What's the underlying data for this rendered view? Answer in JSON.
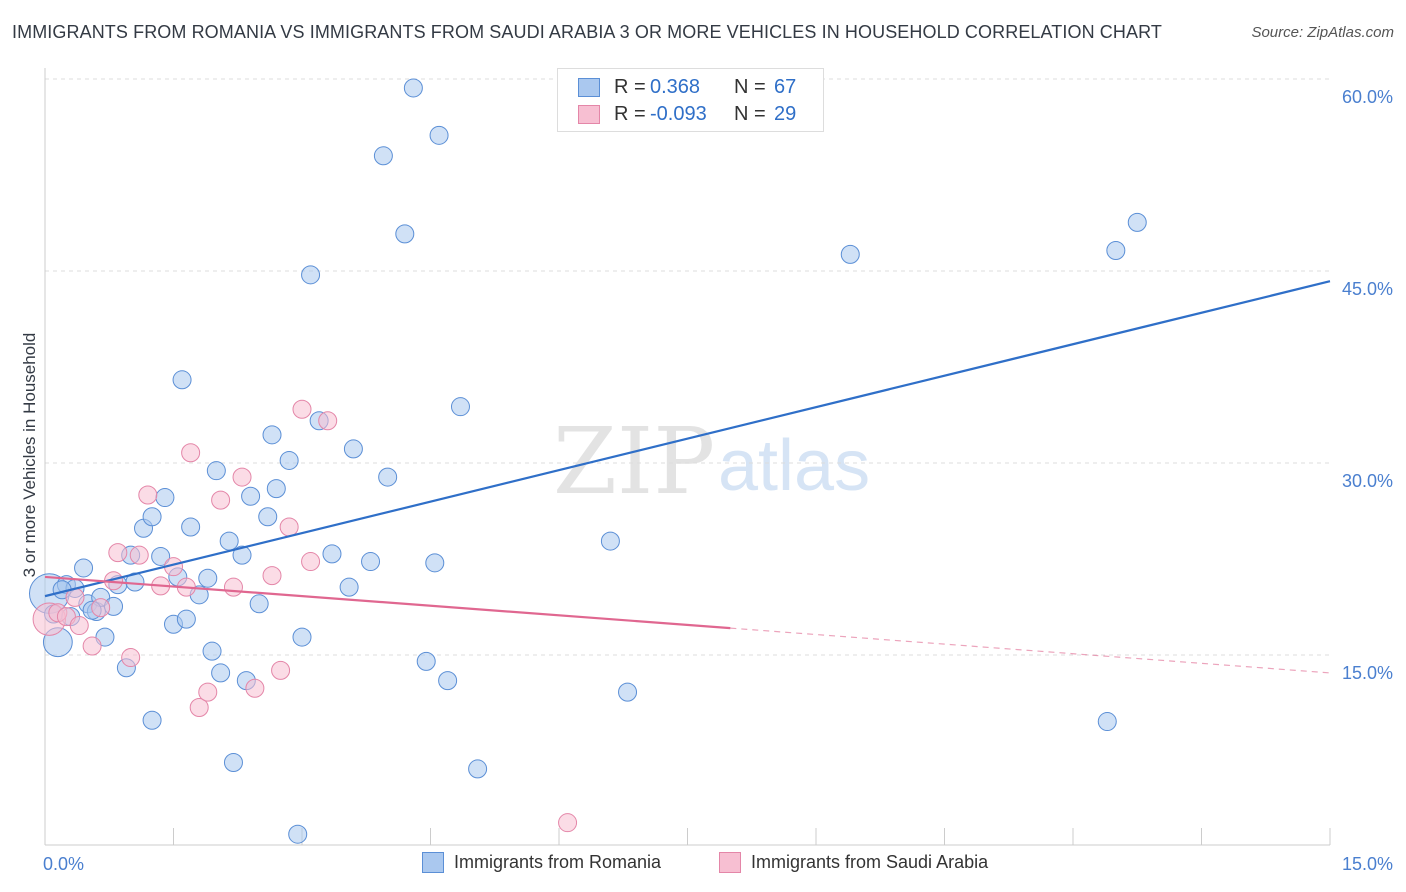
{
  "title": "IMMIGRANTS FROM ROMANIA VS IMMIGRANTS FROM SAUDI ARABIA 3 OR MORE VEHICLES IN HOUSEHOLD CORRELATION CHART",
  "source": "Source: ZipAtlas.com",
  "watermark": {
    "zip": "ZIP",
    "atlas": "atlas"
  },
  "legend": [
    {
      "r_label": "R =",
      "r_value": "0.368",
      "n_label": "N =",
      "n_value": "67",
      "color": "#aac8ef",
      "border": "#5b8fd6"
    },
    {
      "r_label": "R =",
      "r_value": "-0.093",
      "n_label": "N =",
      "n_value": "29",
      "color": "#f7bfd2",
      "border": "#e486a8"
    }
  ],
  "chart_data": {
    "type": "scatter",
    "title": "IMMIGRANTS FROM ROMANIA VS IMMIGRANTS FROM SAUDI ARABIA 3 OR MORE VEHICLES IN HOUSEHOLD CORRELATION CHART",
    "xlabel": "",
    "ylabel": "3 or more Vehicles in Household",
    "xlim": [
      0,
      15
    ],
    "ylim": [
      0,
      60
    ],
    "x_tick_labels": [
      "0.0%",
      "15.0%"
    ],
    "y_ticks": [
      15,
      30,
      45,
      60
    ],
    "y_tick_labels": [
      "15.0%",
      "30.0%",
      "45.0%",
      "60.0%"
    ],
    "grid": true,
    "legend_position": "top-center",
    "series": [
      {
        "name": "Immigrants from Romania",
        "color": "#aac8ef",
        "stroke": "#5b8fd6",
        "line_color": "#2f6fc8",
        "trend": {
          "x": [
            0,
            15
          ],
          "y": [
            19.6,
            44.2
          ]
        },
        "points": [
          {
            "x": 0.05,
            "y": 19.8,
            "s": 2.2
          },
          {
            "x": 0.15,
            "y": 16.0,
            "s": 1.6
          },
          {
            "x": 0.1,
            "y": 18.2
          },
          {
            "x": 0.25,
            "y": 20.5
          },
          {
            "x": 0.35,
            "y": 20.2
          },
          {
            "x": 0.45,
            "y": 21.8
          },
          {
            "x": 0.5,
            "y": 19.0
          },
          {
            "x": 0.6,
            "y": 18.4
          },
          {
            "x": 0.65,
            "y": 19.5
          },
          {
            "x": 0.7,
            "y": 16.4
          },
          {
            "x": 0.8,
            "y": 18.8
          },
          {
            "x": 0.85,
            "y": 20.5
          },
          {
            "x": 0.95,
            "y": 14.0
          },
          {
            "x": 1.0,
            "y": 22.8
          },
          {
            "x": 1.05,
            "y": 20.7
          },
          {
            "x": 1.15,
            "y": 24.9
          },
          {
            "x": 1.25,
            "y": 25.8
          },
          {
            "x": 1.35,
            "y": 22.7
          },
          {
            "x": 1.4,
            "y": 27.3
          },
          {
            "x": 1.5,
            "y": 17.4
          },
          {
            "x": 1.55,
            "y": 21.1
          },
          {
            "x": 1.6,
            "y": 36.5
          },
          {
            "x": 1.65,
            "y": 17.8
          },
          {
            "x": 1.7,
            "y": 25.0
          },
          {
            "x": 1.8,
            "y": 19.7
          },
          {
            "x": 1.9,
            "y": 21.0
          },
          {
            "x": 1.95,
            "y": 15.3
          },
          {
            "x": 2.0,
            "y": 29.4
          },
          {
            "x": 2.05,
            "y": 13.6
          },
          {
            "x": 2.15,
            "y": 23.9
          },
          {
            "x": 2.3,
            "y": 22.8
          },
          {
            "x": 2.35,
            "y": 13.0
          },
          {
            "x": 2.4,
            "y": 27.4
          },
          {
            "x": 2.5,
            "y": 19.0
          },
          {
            "x": 2.6,
            "y": 25.8
          },
          {
            "x": 2.65,
            "y": 32.2
          },
          {
            "x": 2.7,
            "y": 28.0
          },
          {
            "x": 2.85,
            "y": 30.2
          },
          {
            "x": 3.0,
            "y": 16.4
          },
          {
            "x": 3.1,
            "y": 44.7
          },
          {
            "x": 3.2,
            "y": 33.3
          },
          {
            "x": 3.35,
            "y": 22.9
          },
          {
            "x": 3.55,
            "y": 20.3
          },
          {
            "x": 3.6,
            "y": 31.1
          },
          {
            "x": 3.8,
            "y": 22.3
          },
          {
            "x": 3.95,
            "y": 54.0
          },
          {
            "x": 4.0,
            "y": 28.9
          },
          {
            "x": 4.2,
            "y": 47.9
          },
          {
            "x": 4.3,
            "y": 59.3
          },
          {
            "x": 4.45,
            "y": 14.5
          },
          {
            "x": 4.55,
            "y": 22.2
          },
          {
            "x": 4.6,
            "y": 55.6
          },
          {
            "x": 4.7,
            "y": 13.0
          },
          {
            "x": 4.85,
            "y": 34.4
          },
          {
            "x": 5.05,
            "y": 6.1
          },
          {
            "x": 6.6,
            "y": 23.9
          },
          {
            "x": 6.8,
            "y": 12.1
          },
          {
            "x": 9.4,
            "y": 46.3
          },
          {
            "x": 12.5,
            "y": 46.6
          },
          {
            "x": 12.75,
            "y": 48.8
          },
          {
            "x": 12.4,
            "y": 9.8
          },
          {
            "x": 2.2,
            "y": 6.6
          },
          {
            "x": 2.95,
            "y": 1.0
          },
          {
            "x": 1.25,
            "y": 9.9
          },
          {
            "x": 0.3,
            "y": 18.0
          },
          {
            "x": 0.2,
            "y": 20.1
          },
          {
            "x": 0.55,
            "y": 18.5
          }
        ]
      },
      {
        "name": "Immigrants from Saudi Arabia",
        "color": "#f7bfd2",
        "stroke": "#e486a8",
        "line_color": "#e06790",
        "trend": {
          "x": [
            0,
            8.0
          ],
          "y": [
            21.1,
            17.1
          ]
        },
        "trend_dashed": {
          "x": [
            8.0,
            15
          ],
          "y": [
            17.1,
            13.6
          ]
        },
        "points": [
          {
            "x": 0.05,
            "y": 17.8,
            "s": 1.8
          },
          {
            "x": 0.15,
            "y": 18.3
          },
          {
            "x": 0.25,
            "y": 18.0
          },
          {
            "x": 0.4,
            "y": 17.3
          },
          {
            "x": 0.55,
            "y": 15.7
          },
          {
            "x": 0.65,
            "y": 18.7
          },
          {
            "x": 0.8,
            "y": 20.8
          },
          {
            "x": 0.85,
            "y": 23.0
          },
          {
            "x": 1.0,
            "y": 14.8
          },
          {
            "x": 1.1,
            "y": 22.8
          },
          {
            "x": 1.2,
            "y": 27.5
          },
          {
            "x": 1.35,
            "y": 20.4
          },
          {
            "x": 1.5,
            "y": 21.9
          },
          {
            "x": 1.65,
            "y": 20.3
          },
          {
            "x": 1.7,
            "y": 30.8
          },
          {
            "x": 1.8,
            "y": 10.9
          },
          {
            "x": 1.9,
            "y": 12.1
          },
          {
            "x": 2.05,
            "y": 27.1
          },
          {
            "x": 2.2,
            "y": 20.3
          },
          {
            "x": 2.3,
            "y": 28.9
          },
          {
            "x": 2.45,
            "y": 12.4
          },
          {
            "x": 2.65,
            "y": 21.2
          },
          {
            "x": 2.75,
            "y": 13.8
          },
          {
            "x": 2.85,
            "y": 25.0
          },
          {
            "x": 3.0,
            "y": 34.2
          },
          {
            "x": 3.3,
            "y": 33.3
          },
          {
            "x": 3.1,
            "y": 22.3
          },
          {
            "x": 6.1,
            "y": 1.9
          },
          {
            "x": 0.35,
            "y": 19.5
          }
        ]
      }
    ]
  }
}
